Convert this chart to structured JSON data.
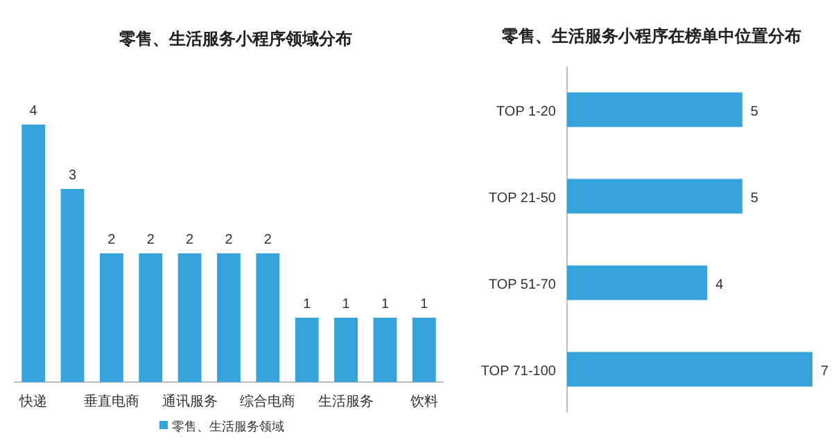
{
  "chart_data": [
    {
      "type": "bar",
      "title": "零售、生活服务小程序领域分布",
      "categories": [
        "快递",
        null,
        "垂直电商",
        null,
        "通讯服务",
        null,
        "综合电商",
        null,
        "生活服务",
        null,
        "饮料"
      ],
      "series": [
        {
          "name": "零售、生活服务领域",
          "color": "#36a3da",
          "values": [
            4,
            3,
            2,
            2,
            2,
            2,
            2,
            1,
            1,
            1,
            1
          ]
        }
      ],
      "data_labels": true,
      "legend": "bottom"
    },
    {
      "type": "bar",
      "orientation": "horizontal",
      "title": "零售、生活服务小程序在榜单中位置分布",
      "categories": [
        "TOP 1-20",
        "TOP 21-50",
        "TOP 51-70",
        "TOP 71-100"
      ],
      "series": [
        {
          "color": "#36a3da",
          "values": [
            5,
            5,
            4,
            7
          ]
        }
      ],
      "data_labels": true
    }
  ]
}
